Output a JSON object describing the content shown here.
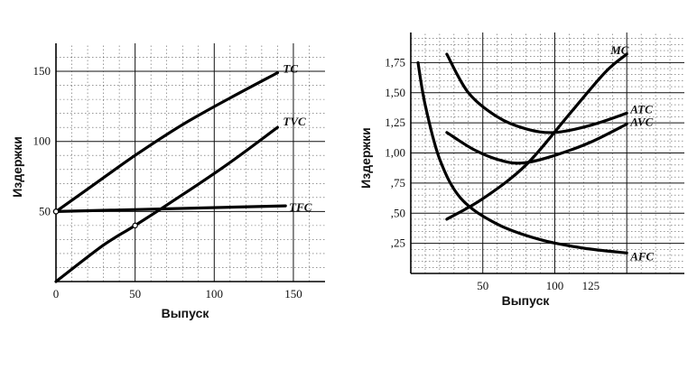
{
  "chart_data": [
    {
      "type": "line",
      "title": "",
      "xlabel": "Выпуск",
      "ylabel": "Издержки",
      "xlim": [
        0,
        170
      ],
      "ylim": [
        0,
        170
      ],
      "xticks": [
        "0",
        "50",
        "100",
        "150"
      ],
      "xtick_values": [
        0,
        50,
        100,
        150
      ],
      "yticks": [
        "50",
        "100",
        "150"
      ],
      "ytick_values": [
        50,
        100,
        150
      ],
      "grid": true,
      "series": [
        {
          "name": "TC",
          "x": [
            0,
            20,
            50,
            80,
            110,
            140
          ],
          "y": [
            50,
            66,
            90,
            112,
            131,
            149
          ]
        },
        {
          "name": "TVC",
          "x": [
            0,
            30,
            50,
            80,
            110,
            140
          ],
          "y": [
            0,
            26,
            40,
            62,
            85,
            110
          ]
        },
        {
          "name": "TFC",
          "x": [
            0,
            145
          ],
          "y": [
            50,
            54
          ]
        }
      ]
    },
    {
      "type": "line",
      "title": "",
      "xlabel": "Выпуск",
      "ylabel": "Издержки",
      "xlim": [
        0,
        190
      ],
      "ylim": [
        0,
        2.0
      ],
      "xticks": [
        "50",
        "100",
        "125"
      ],
      "xtick_values": [
        50,
        100,
        125
      ],
      "yticks": [
        ",25",
        ",50",
        ",75",
        "1,00",
        "1,25",
        "1,50",
        "1,75"
      ],
      "ytick_values": [
        0.25,
        0.5,
        0.75,
        1.0,
        1.25,
        1.5,
        1.75
      ],
      "grid": true,
      "series": [
        {
          "name": "MC",
          "x": [
            25,
            50,
            80,
            110,
            135,
            150
          ],
          "y": [
            0.45,
            0.62,
            0.9,
            1.32,
            1.67,
            1.82
          ]
        },
        {
          "name": "ATC",
          "x": [
            25,
            40,
            60,
            80,
            100,
            125,
            150
          ],
          "y": [
            1.82,
            1.5,
            1.3,
            1.2,
            1.17,
            1.23,
            1.33
          ]
        },
        {
          "name": "AVC",
          "x": [
            25,
            45,
            65,
            80,
            100,
            125,
            150
          ],
          "y": [
            1.17,
            1.02,
            0.93,
            0.92,
            0.98,
            1.09,
            1.24
          ]
        },
        {
          "name": "AFC",
          "x": [
            5,
            10,
            20,
            35,
            60,
            90,
            120,
            150
          ],
          "y": [
            1.75,
            1.4,
            0.95,
            0.62,
            0.41,
            0.28,
            0.21,
            0.17
          ]
        }
      ]
    }
  ]
}
